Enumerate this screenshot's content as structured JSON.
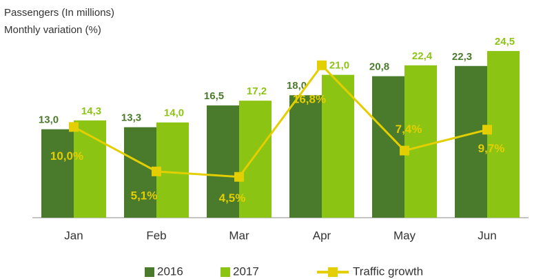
{
  "chart_data": {
    "type": "bar",
    "y_label": "Passengers (In millions)",
    "y2_label": "Monthly variation (%)",
    "categories": [
      "Jan",
      "Feb",
      "Mar",
      "Apr",
      "May",
      "Jun"
    ],
    "series": [
      {
        "name": "2016",
        "color": "#4a7a2c",
        "values": [
          13.0,
          13.3,
          16.5,
          18.0,
          20.8,
          22.3
        ],
        "value_labels": [
          "13,0",
          "13,3",
          "16,5",
          "18,0",
          "20,8",
          "22,3"
        ]
      },
      {
        "name": "2017",
        "color": "#8cc414",
        "values": [
          14.3,
          14.0,
          17.2,
          21.0,
          22.4,
          24.5
        ],
        "value_labels": [
          "14,3",
          "14,0",
          "17,2",
          "21,0",
          "22,4",
          "24,5"
        ]
      },
      {
        "name": "Traffic growth",
        "type": "line",
        "axis": "y2",
        "color": "#e3cf00",
        "values": [
          10.0,
          5.1,
          4.5,
          16.8,
          7.4,
          9.7
        ],
        "value_labels": [
          "10,0%",
          "5,1%",
          "4,5%",
          "16,8%",
          "7,4%",
          "9,7%"
        ]
      }
    ],
    "ylim": [
      0,
      32
    ],
    "y2lim": [
      0,
      24
    ],
    "legend": "bottom"
  }
}
